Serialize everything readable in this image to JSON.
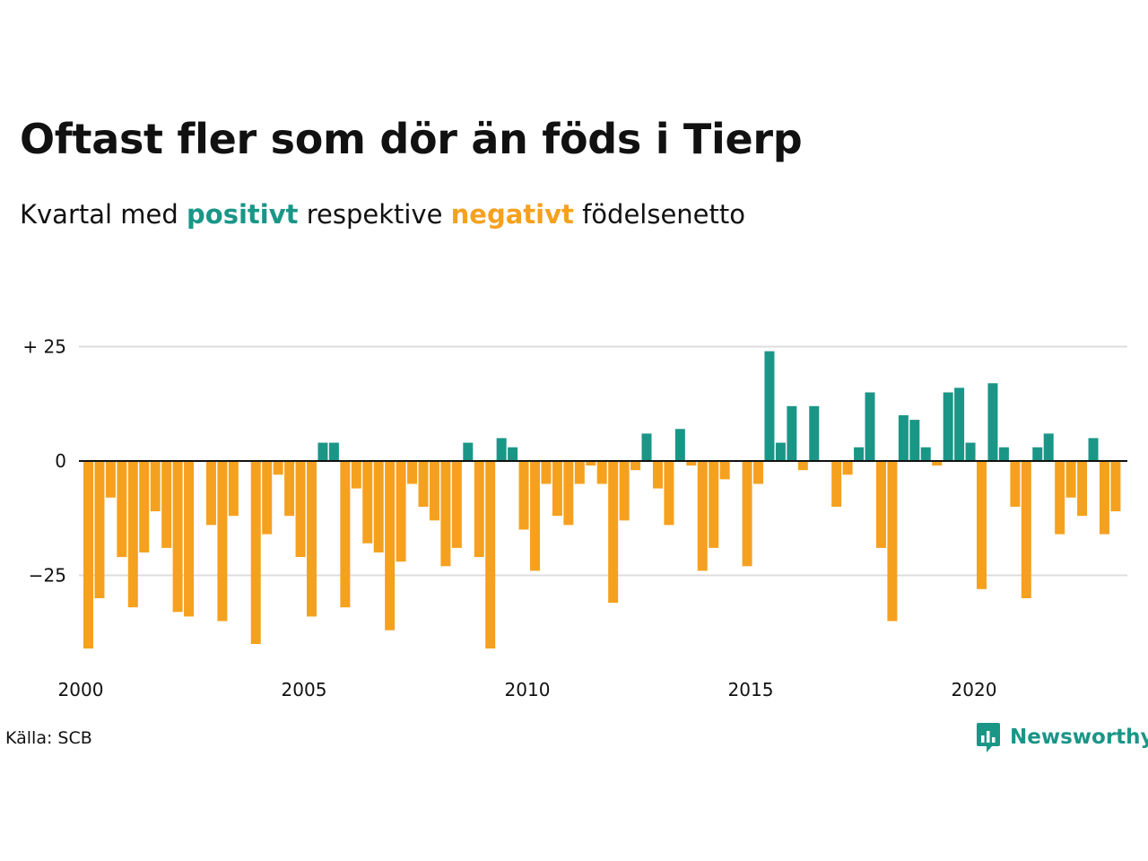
{
  "title": "Oftast fler som dör än föds i Tierp",
  "subtitle": {
    "prefix": "Kvartal med",
    "positive": "positivt",
    "middle": "respektive",
    "negative": "negativt",
    "suffix": "födelsenetto"
  },
  "source": "Källa: SCB",
  "logo_text": "Newsworthy",
  "colors": {
    "positive": "#1a9687",
    "negative": "#f5a11f",
    "grid": "#dddddd",
    "zero_line": "#111111",
    "text": "#111111"
  },
  "chart_data": {
    "type": "bar",
    "x_unit": "quarter",
    "x_start": "2000 Q1",
    "x_tick_labels": [
      "2000",
      "2005",
      "2010",
      "2015",
      "2020"
    ],
    "y_tick_labels": [
      "+ 25",
      "0",
      "−25"
    ],
    "y_ticks": [
      25,
      0,
      -25
    ],
    "ylim": [
      -41,
      25
    ],
    "grid": true,
    "values": [
      -41,
      -30,
      -8,
      -21,
      -32,
      -20,
      -11,
      -19,
      -33,
      -34,
      0,
      -14,
      -35,
      -12,
      0,
      -40,
      -16,
      -3,
      -12,
      -21,
      -34,
      4,
      4,
      -32,
      -6,
      -18,
      -20,
      -37,
      -22,
      -5,
      -10,
      -13,
      -23,
      -19,
      4,
      -21,
      -41,
      5,
      3,
      -15,
      -24,
      -5,
      -12,
      -14,
      -5,
      -1,
      -5,
      -31,
      -13,
      -2,
      6,
      -6,
      -14,
      7,
      -1,
      -24,
      -19,
      -4,
      0,
      -23,
      -5,
      24,
      4,
      12,
      -2,
      12,
      0,
      -10,
      -3,
      3,
      15,
      -19,
      -35,
      10,
      9,
      3,
      -1,
      15,
      16,
      4,
      -28,
      17,
      3,
      -10,
      -30,
      3,
      6,
      -16,
      -8,
      -12,
      5,
      -16,
      -11
    ]
  }
}
